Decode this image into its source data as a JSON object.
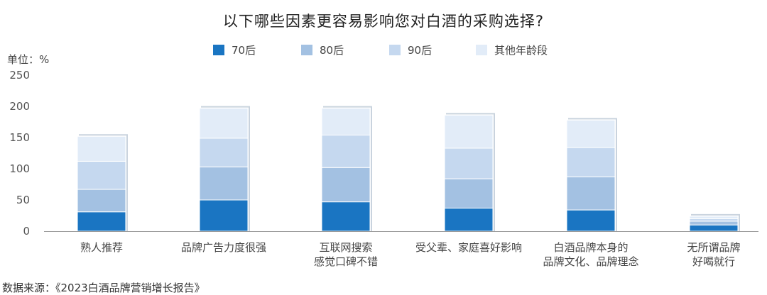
{
  "chart_data": {
    "type": "bar",
    "stacked": true,
    "title": "以下哪些因素更容易影响您对白酒的采购选择?",
    "unit_label": "单位：%",
    "ylim": [
      0,
      250
    ],
    "yticks": [
      0,
      50,
      100,
      150,
      200,
      250
    ],
    "grid": false,
    "legend_position": "top",
    "categories": [
      [
        "熟人推荐"
      ],
      [
        "品牌广告力度很强"
      ],
      [
        "互联网搜索",
        "感觉口碑不错"
      ],
      [
        "受父辈、家庭喜好影响"
      ],
      [
        "白酒品牌本身的",
        "品牌文化、品牌理念"
      ],
      [
        "无所谓品牌",
        "好喝就行"
      ]
    ],
    "series": [
      {
        "name": "70后",
        "color": "#1a75c2",
        "values": [
          31,
          50,
          47,
          37,
          34,
          10
        ]
      },
      {
        "name": "80后",
        "color": "#a3c1e2",
        "values": [
          36,
          53,
          55,
          47,
          53,
          6
        ]
      },
      {
        "name": "90后",
        "color": "#c5d8ef",
        "values": [
          45,
          46,
          52,
          49,
          47,
          4
        ]
      },
      {
        "name": "其他年龄段",
        "color": "#e2ecf8",
        "values": [
          40,
          48,
          43,
          53,
          44,
          4
        ]
      }
    ]
  },
  "source_note": "数据来源：《2023白酒品牌营销增长报告》"
}
